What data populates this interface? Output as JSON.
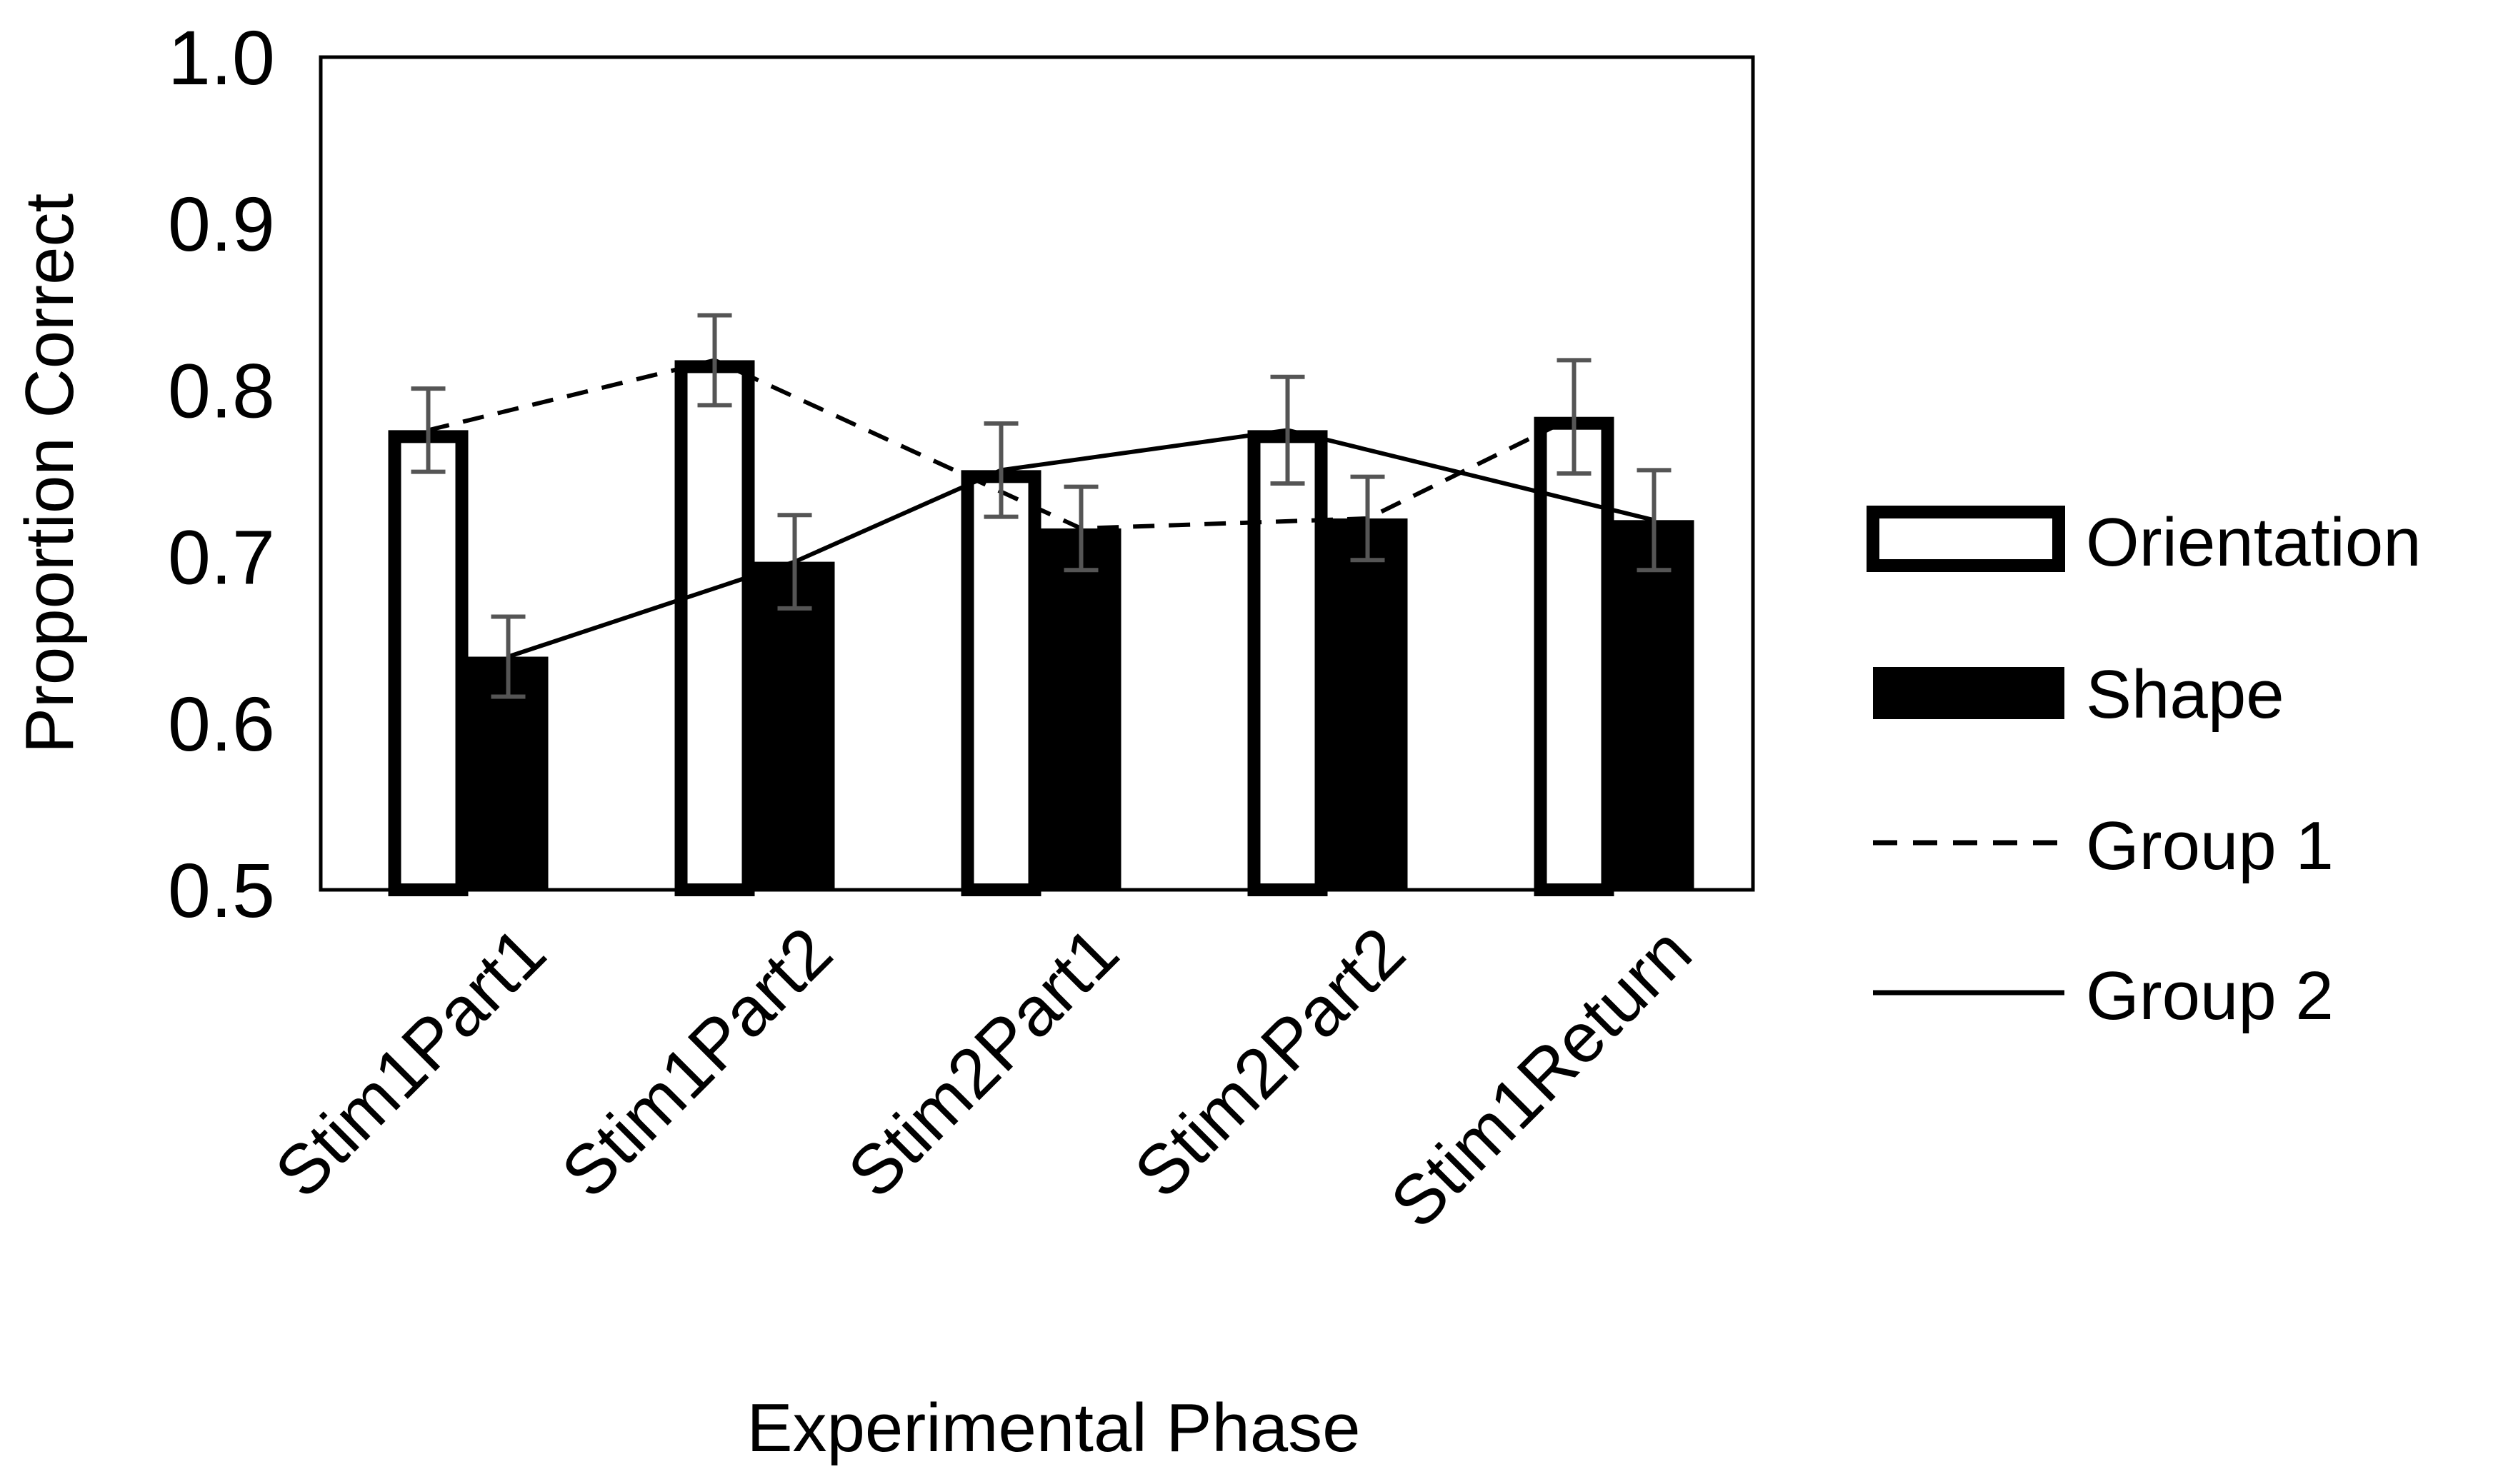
{
  "chart_data": {
    "type": "bar",
    "title": "",
    "xlabel": "Experimental Phase",
    "ylabel": "Proportion Correct",
    "ylim": [
      0.5,
      1.0
    ],
    "yticks": [
      "0.5",
      "0.6",
      "0.7",
      "0.8",
      "0.9",
      "1.0"
    ],
    "categories": [
      "Stim1Part1",
      "Stim1Part2",
      "Stim2Part1",
      "Stim2Part2",
      "Stim1Return"
    ],
    "series": [
      {
        "name": "Orientation",
        "kind": "bar",
        "style": "open",
        "values": [
          0.776,
          0.818,
          0.752,
          0.776,
          0.784
        ],
        "error": [
          0.025,
          0.027,
          0.028,
          0.032,
          0.034
        ]
      },
      {
        "name": "Shape",
        "kind": "bar",
        "style": "filled",
        "values": [
          0.64,
          0.697,
          0.717,
          0.723,
          0.722
        ],
        "error": [
          0.024,
          0.028,
          0.025,
          0.025,
          0.03
        ]
      },
      {
        "name": "Group 1",
        "kind": "line",
        "style": "dashed",
        "values": [
          0.776,
          0.818,
          0.717,
          0.723,
          0.784
        ]
      },
      {
        "name": "Group 2",
        "kind": "line",
        "style": "solid",
        "values": [
          0.64,
          0.697,
          0.752,
          0.776,
          0.722
        ]
      }
    ],
    "legend_position": "right",
    "grid": false
  }
}
